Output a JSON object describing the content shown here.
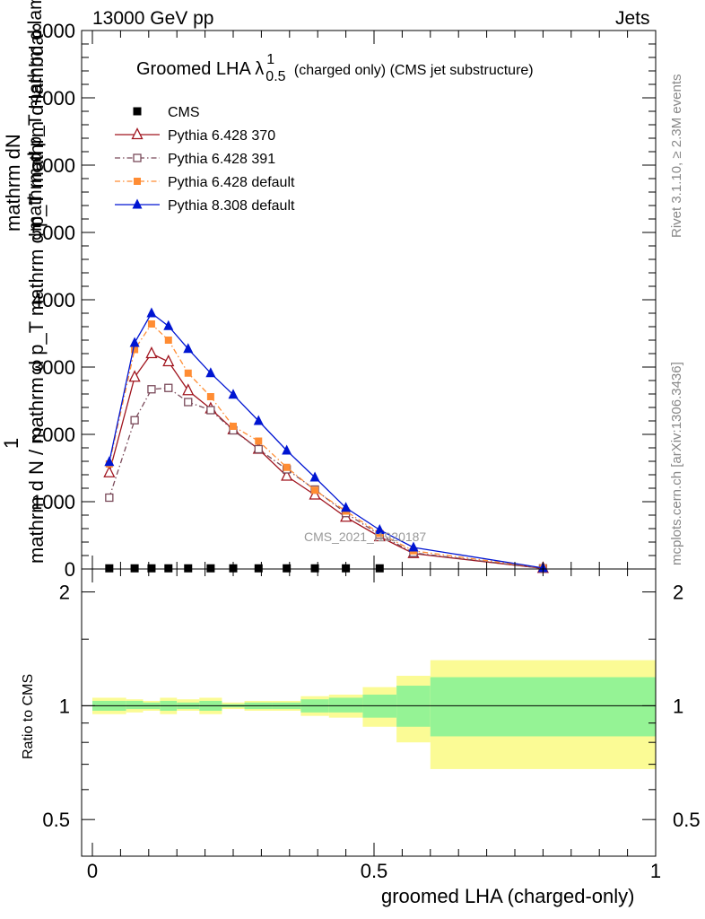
{
  "header": {
    "left": "13000 GeV pp",
    "right": "Jets"
  },
  "side_labels": {
    "rivet": "Rivet 3.1.10, ≥ 2.3M events",
    "mcplots": "mcplots.cern.ch [arXiv:1306.3436]"
  },
  "plot_title": {
    "prefix": "Groomed LHA",
    "lambda": "λ",
    "sup": "1",
    "sub": "0.5",
    "suffix": "(charged only) (CMS jet substructure)"
  },
  "watermark": "CMS_2021_I1920187",
  "colors": {
    "cms": "#000000",
    "py370": "#a0141e",
    "py391": "#7a4a5a",
    "py6def": "#ff8c33",
    "py8def": "#0015d2",
    "band_inner": "#95f395",
    "band_outer": "#fbfb95"
  },
  "chart_data": [
    {
      "type": "line",
      "title": "Groomed LHA λ^1_0.5 (charged only) (CMS jet substructure)",
      "ylabel": "1 / mathrm d N / mathrm d p_T mathrm d p_T mathrm d lambda · mathrm dN / mathrm d lambda",
      "ylabel_parts": {
        "numerator": "1",
        "denominator": "mathrm d N / mathrm d p_T mathrm d p_T mathrm d lambda",
        "right_numerator": "mathrm dN",
        "right_denominator": "mathrm d p_T mathrm d lambda"
      },
      "xlim": [
        0,
        1
      ],
      "ylim": [
        0,
        8000
      ],
      "yticks": [
        0,
        1000,
        2000,
        3000,
        4000,
        5000,
        6000,
        7000,
        8000
      ],
      "ytick_labels": [
        "0",
        "1000",
        "2000",
        "3000",
        "4000",
        "5000",
        "6000",
        "7000",
        "8000"
      ],
      "legend_position": "top-left",
      "series": [
        {
          "name": "CMS",
          "key": "cms",
          "marker": "square",
          "style": "none",
          "x": [
            0.03,
            0.075,
            0.105,
            0.135,
            0.17,
            0.21,
            0.25,
            0.295,
            0.345,
            0.395,
            0.45,
            0.51
          ],
          "y": [
            10,
            10,
            10,
            10,
            10,
            10,
            10,
            10,
            10,
            10,
            10,
            10
          ]
        },
        {
          "name": "Pythia 6.428 370",
          "key": "py370",
          "marker": "triangle-open",
          "style": "solid",
          "x": [
            0.03,
            0.075,
            0.105,
            0.135,
            0.17,
            0.21,
            0.25,
            0.295,
            0.345,
            0.395,
            0.45,
            0.51,
            0.57,
            0.8
          ],
          "y": [
            1430,
            2850,
            3200,
            3080,
            2650,
            2380,
            2070,
            1780,
            1380,
            1100,
            770,
            480,
            230,
            10
          ]
        },
        {
          "name": "Pythia 6.428 391",
          "key": "py391",
          "marker": "square-open",
          "style": "dashdot",
          "x": [
            0.03,
            0.075,
            0.105,
            0.135,
            0.17,
            0.21,
            0.25,
            0.295,
            0.345,
            0.395,
            0.45,
            0.51,
            0.57,
            0.8
          ],
          "y": [
            1060,
            2210,
            2670,
            2690,
            2480,
            2360,
            2060,
            1780,
            1480,
            1180,
            830,
            510,
            240,
            10
          ]
        },
        {
          "name": "Pythia 6.428 default",
          "key": "py6def",
          "marker": "square-filled",
          "style": "dashdot",
          "x": [
            0.03,
            0.075,
            0.105,
            0.135,
            0.17,
            0.21,
            0.25,
            0.295,
            0.345,
            0.395,
            0.45,
            0.51,
            0.57,
            0.8
          ],
          "y": [
            1560,
            3260,
            3640,
            3400,
            2910,
            2560,
            2120,
            1900,
            1510,
            1170,
            860,
            530,
            270,
            15
          ]
        },
        {
          "name": "Pythia 8.308 default",
          "key": "py8def",
          "marker": "triangle-filled",
          "style": "solid",
          "x": [
            0.03,
            0.075,
            0.105,
            0.135,
            0.17,
            0.21,
            0.25,
            0.295,
            0.345,
            0.395,
            0.45,
            0.51,
            0.57,
            0.8
          ],
          "y": [
            1590,
            3360,
            3800,
            3610,
            3270,
            2910,
            2590,
            2200,
            1760,
            1360,
            910,
            580,
            320,
            15
          ]
        }
      ]
    },
    {
      "type": "area",
      "ylabel": "Ratio to CMS",
      "xlabel": "groomed LHA (charged-only)",
      "xlim": [
        0,
        1
      ],
      "xticks": [
        0,
        0.5,
        1
      ],
      "xtick_labels": [
        "0",
        "0.5",
        "1"
      ],
      "ylim": [
        0.4,
        2.3
      ],
      "yscale": "log",
      "yticks": [
        0.5,
        1,
        2
      ],
      "ytick_labels": [
        "0.5",
        "1",
        "2"
      ],
      "reference_line": 1,
      "bins": [
        {
          "x_low": 0.0,
          "x_high": 0.06,
          "inner": [
            0.97,
            1.03
          ],
          "outer": [
            0.95,
            1.05
          ]
        },
        {
          "x_low": 0.06,
          "x_high": 0.09,
          "inner": [
            0.98,
            1.03
          ],
          "outer": [
            0.96,
            1.04
          ]
        },
        {
          "x_low": 0.09,
          "x_high": 0.12,
          "inner": [
            0.98,
            1.02
          ],
          "outer": [
            0.97,
            1.03
          ]
        },
        {
          "x_low": 0.12,
          "x_high": 0.15,
          "inner": [
            0.97,
            1.03
          ],
          "outer": [
            0.95,
            1.05
          ]
        },
        {
          "x_low": 0.15,
          "x_high": 0.19,
          "inner": [
            0.98,
            1.02
          ],
          "outer": [
            0.97,
            1.04
          ]
        },
        {
          "x_low": 0.19,
          "x_high": 0.23,
          "inner": [
            0.97,
            1.03
          ],
          "outer": [
            0.95,
            1.05
          ]
        },
        {
          "x_low": 0.23,
          "x_high": 0.27,
          "inner": [
            0.99,
            1.01
          ],
          "outer": [
            0.98,
            1.02
          ]
        },
        {
          "x_low": 0.27,
          "x_high": 0.32,
          "inner": [
            0.98,
            1.02
          ],
          "outer": [
            0.97,
            1.03
          ]
        },
        {
          "x_low": 0.32,
          "x_high": 0.37,
          "inner": [
            0.98,
            1.02
          ],
          "outer": [
            0.97,
            1.03
          ]
        },
        {
          "x_low": 0.37,
          "x_high": 0.42,
          "inner": [
            0.96,
            1.04
          ],
          "outer": [
            0.94,
            1.06
          ]
        },
        {
          "x_low": 0.42,
          "x_high": 0.48,
          "inner": [
            0.96,
            1.05
          ],
          "outer": [
            0.93,
            1.07
          ]
        },
        {
          "x_low": 0.48,
          "x_high": 0.54,
          "inner": [
            0.93,
            1.07
          ],
          "outer": [
            0.88,
            1.12
          ]
        },
        {
          "x_low": 0.54,
          "x_high": 0.6,
          "inner": [
            0.88,
            1.13
          ],
          "outer": [
            0.8,
            1.2
          ]
        },
        {
          "x_low": 0.6,
          "x_high": 1.0,
          "inner": [
            0.83,
            1.19
          ],
          "outer": [
            0.68,
            1.32
          ]
        }
      ]
    }
  ]
}
